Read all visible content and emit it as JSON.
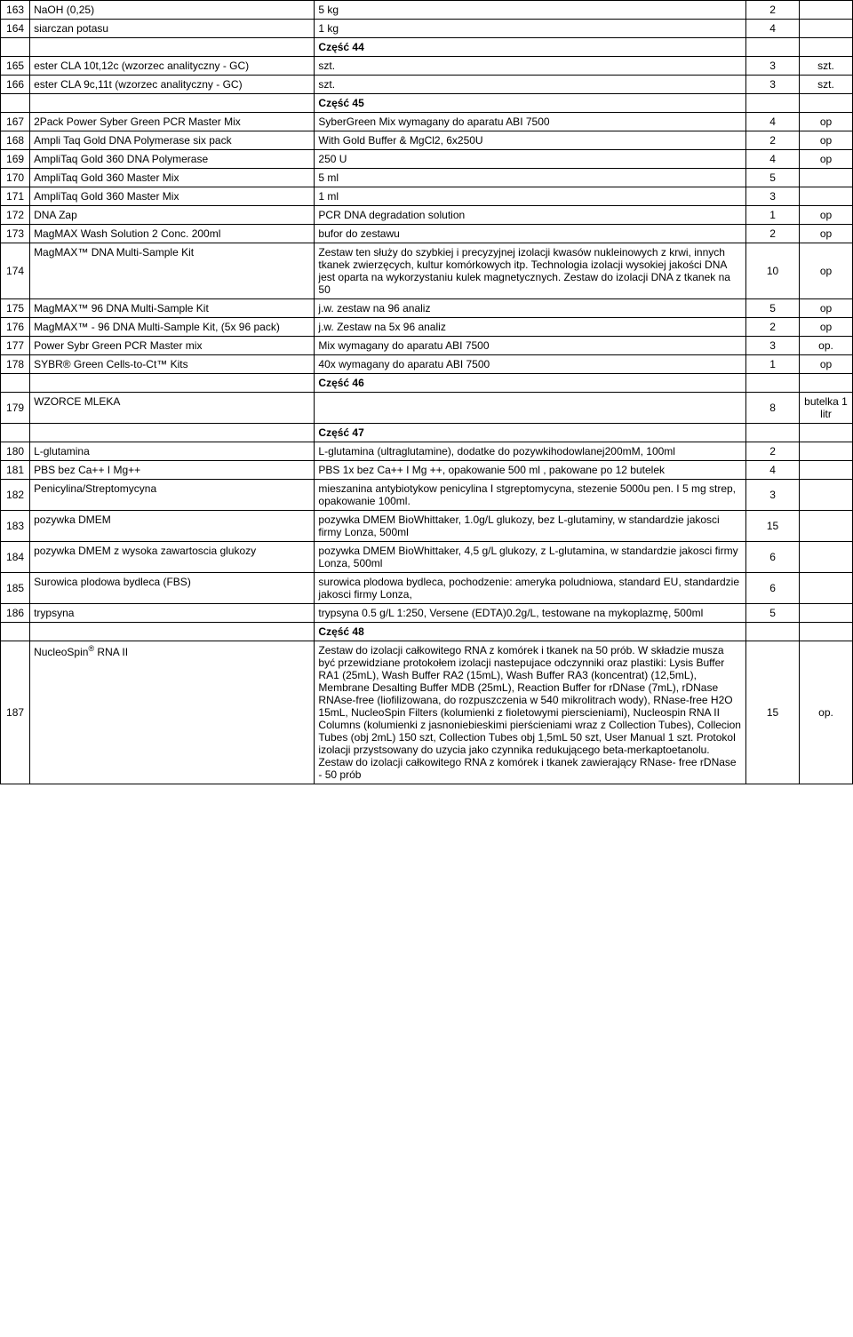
{
  "sections": {
    "s44": "Część 44",
    "s45": "Część 45",
    "s46": "Część 46",
    "s47": "Część 47",
    "s48": "Część 48"
  },
  "rows": {
    "r163": {
      "num": "163",
      "name": "NaOH (0,25)",
      "desc": "5 kg",
      "qty": "2",
      "unit": ""
    },
    "r164": {
      "num": "164",
      "name": "siarczan potasu",
      "desc": "1 kg",
      "qty": "4",
      "unit": ""
    },
    "r165": {
      "num": "165",
      "name": "ester CLA 10t,12c (wzorzec analityczny - GC)",
      "desc": "szt.",
      "qty": "3",
      "unit": "szt."
    },
    "r166": {
      "num": "166",
      "name": "ester CLA 9c,11t (wzorzec analityczny - GC)",
      "desc": "szt.",
      "qty": "3",
      "unit": "szt."
    },
    "r167": {
      "num": "167",
      "name": "2Pack Power Syber Green PCR Master Mix",
      "desc": "SyberGreen  Mix wymagany do aparatu ABI 7500",
      "qty": "4",
      "unit": "op"
    },
    "r168": {
      "num": "168",
      "name": "Ampli Taq Gold DNA Polymerase six pack",
      "desc": "With Gold Buffer & MgCl2, 6x250U",
      "qty": "2",
      "unit": "op"
    },
    "r169": {
      "num": "169",
      "name": "AmpliTaq Gold 360 DNA Polymerase",
      "desc": "250 U",
      "qty": "4",
      "unit": "op"
    },
    "r170": {
      "num": "170",
      "name": "AmpliTaq Gold 360 Master Mix",
      "desc": "5 ml",
      "qty": "5",
      "unit": ""
    },
    "r171": {
      "num": "171",
      "name": "AmpliTaq Gold 360 Master Mix",
      "desc": "1 ml",
      "qty": "3",
      "unit": ""
    },
    "r172": {
      "num": "172",
      "name": "DNA Zap",
      "desc": "PCR DNA degradation solution",
      "qty": "1",
      "unit": "op"
    },
    "r173": {
      "num": "173",
      "name": "MagMAX Wash Solution 2 Conc. 200ml",
      "desc": "bufor do zestawu",
      "qty": "2",
      "unit": "op"
    },
    "r174": {
      "num": "174",
      "name": "MagMAX™   DNA Multi-Sample Kit",
      "desc": "Zestaw ten służy do szybkiej i precyzyjnej izolacji kwasów nukleinowych z krwi, innych tkanek zwierzęcych, kultur komórkowych itp. Technologia izolacji wysokiej jakości DNA jest oparta na wykorzystaniu kulek magnetycznych. Zestaw  do izolacji DNA z tkanek na 50",
      "qty": "10",
      "unit": "op"
    },
    "r175": {
      "num": "175",
      "name": "MagMAX™  96 DNA Multi-Sample Kit",
      "desc": "j.w. zestaw na 96 analiz",
      "qty": "5",
      "unit": "op"
    },
    "r176": {
      "num": "176",
      "name": "MagMAX™ - 96 DNA Multi-Sample Kit, (5x 96 pack)",
      "desc": "j.w. Zestaw na 5x 96 analiz",
      "qty": "2",
      "unit": "op"
    },
    "r177": {
      "num": "177",
      "name": "Power Sybr Green PCR Master mix",
      "desc": "Mix wymagany do aparatu ABI 7500",
      "qty": "3",
      "unit": "op."
    },
    "r178": {
      "num": "178",
      "name": "SYBR® Green Cells-to-Ct™ Kits",
      "desc": "40x  wymagany do aparatu ABI 7500",
      "qty": "1",
      "unit": "op"
    },
    "r179": {
      "num": "179",
      "name": "WZORCE MLEKA",
      "desc": "",
      "qty": "8",
      "unit": "butelka 1 litr"
    },
    "r180": {
      "num": "180",
      "name": "L-glutamina",
      "desc": "L-glutamina (ultraglutamine), dodatke do pozywkihodowlanej200mM, 100ml",
      "qty": "2",
      "unit": ""
    },
    "r181": {
      "num": "181",
      "name": "PBS bez Ca++ I Mg++",
      "desc": "PBS 1x bez Ca++ I Mg ++, opakowanie 500 ml , pakowane po 12 butelek",
      "qty": "4",
      "unit": ""
    },
    "r182": {
      "num": "182",
      "name": "Penicylina/Streptomycyna",
      "desc": "mieszanina antybiotykow penicylina I stgreptomycyna, stezenie 5000u pen. I 5 mg strep, opakowanie 100ml.",
      "qty": "3",
      "unit": ""
    },
    "r183": {
      "num": "183",
      "name": "pozywka DMEM",
      "desc": "pozywka DMEM BioWhittaker, 1.0g/L glukozy, bez L-glutaminy,  w standardzie jakosci firmy Lonza, 500ml",
      "qty": "15",
      "unit": ""
    },
    "r184": {
      "num": "184",
      "name": "pozywka DMEM z wysoka zawartoscia glukozy",
      "desc": "pozywka DMEM BioWhittaker,  4,5 g/L glukozy, z L-glutamina, w standardzie jakosci firmy Lonza, 500ml",
      "qty": "6",
      "unit": ""
    },
    "r185": {
      "num": "185",
      "name": "Surowica plodowa bydleca (FBS)",
      "desc": "surowica plodowa bydleca, pochodzenie: ameryka poludniowa, standard EU, standardzie jakosci firmy Lonza,",
      "qty": "6",
      "unit": ""
    },
    "r186": {
      "num": "186",
      "name": "trypsyna",
      "desc": "trypsyna 0.5 g/L 1:250, Versene (EDTA)0.2g/L, testowane na mykoplazmę, 500ml",
      "qty": "5",
      "unit": ""
    },
    "r187": {
      "num": "187",
      "name_html": "NucleoSpin<sup>®</sup> RNA II",
      "desc": "Zestaw do izolacji całkowitego RNA z komórek i tkanek na 50 prób.  W składzie musza być przewidziane protokołem izolacji nastepujace odczynniki oraz plastiki: Lysis Buffer RA1 (25mL), Wash Buffer RA2 (15mL), Wash Buffer RA3 (koncentrat) (12,5mL), Membrane Desalting Buffer MDB (25mL), Reaction Buffer for rDNase (7mL), rDNase RNAse-free (liofilizowana, do rozpuszczenia w 540 mikrolitrach wody), RNase-free H2O 15mL, NucleoSpin Filters (kolumienki z fioletowymi pierscieniami), Nucleospin RNA II Columns (kolumienki z jasnoniebieskimi pierścieniami wraz z Collection Tubes), Collecion Tubes (obj 2mL) 150 szt, Collection Tubes obj 1,5mL 50 szt, User Manual  1 szt. Protokol izolacji przystsowany do uzycia jako czynnika redukującego beta-merkaptoetanolu. Zestaw do izolacji całkowitego RNA z komórek i tkanek zawierający RNase- free rDNase - 50 prób",
      "qty": "15",
      "unit": "op."
    }
  }
}
